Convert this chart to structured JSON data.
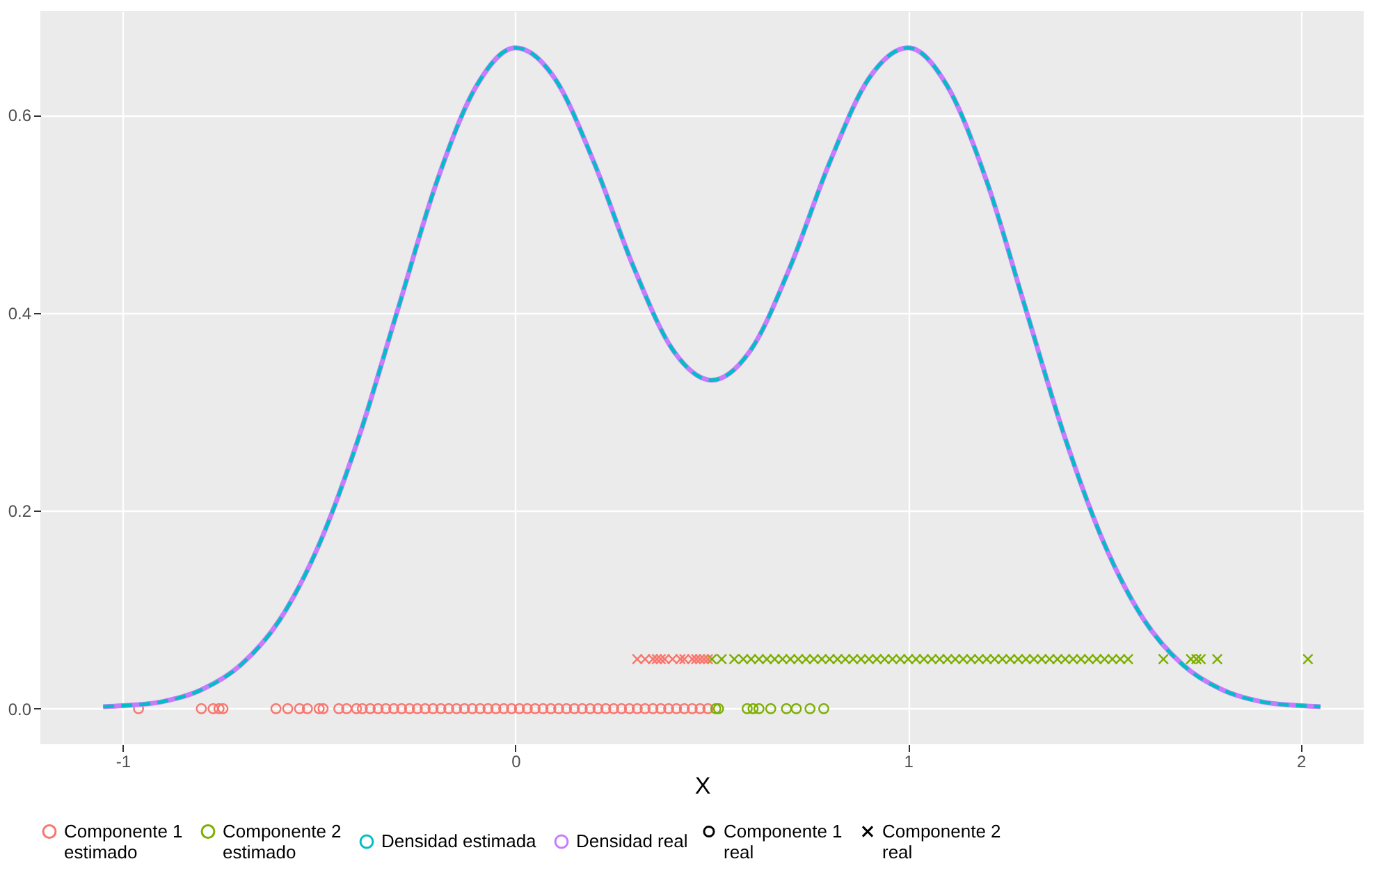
{
  "chart_data": {
    "type": "line",
    "xlabel": "X",
    "xlim": [
      -1.21,
      2.16
    ],
    "ylim": [
      -0.036,
      0.705
    ],
    "xticks": [
      -1,
      0,
      1,
      2
    ],
    "yticks": [
      {
        "value": 0,
        "label": "0.0"
      },
      0.2,
      0.4,
      0.6
    ],
    "grid": true,
    "legend": "bottom",
    "annotations": [
      "Componente 1\nreal",
      "Componente 2\nreal"
    ],
    "series": [
      {
        "type": "scatter",
        "name": "Componente 1\nestimado",
        "color": "#f8766d",
        "marker": "circle",
        "x": [
          -0.96,
          -0.8,
          -0.77,
          -0.755,
          -0.745,
          -0.61,
          -0.58,
          -0.55,
          -0.53,
          -0.5,
          -0.49,
          -0.45,
          -0.43,
          -0.405,
          -0.39,
          -0.37,
          -0.35,
          -0.33,
          -0.31,
          -0.29,
          -0.27,
          -0.25,
          -0.23,
          -0.21,
          -0.19,
          -0.17,
          -0.15,
          -0.13,
          -0.11,
          -0.09,
          -0.07,
          -0.05,
          -0.03,
          -0.01,
          0.01,
          0.03,
          0.05,
          0.07,
          0.09,
          0.11,
          0.13,
          0.15,
          0.17,
          0.19,
          0.21,
          0.23,
          0.25,
          0.27,
          0.29,
          0.31,
          0.33,
          0.35,
          0.37,
          0.39,
          0.41,
          0.43,
          0.45,
          0.47,
          0.49
        ],
        "values": [
          0,
          0,
          0,
          0,
          0,
          0,
          0,
          0,
          0,
          0,
          0,
          0,
          0,
          0,
          0,
          0,
          0,
          0,
          0,
          0,
          0,
          0,
          0,
          0,
          0,
          0,
          0,
          0,
          0,
          0,
          0,
          0,
          0,
          0,
          0,
          0,
          0,
          0,
          0,
          0,
          0,
          0,
          0,
          0,
          0,
          0,
          0,
          0,
          0,
          0,
          0,
          0,
          0,
          0,
          0,
          0,
          0,
          0,
          0
        ]
      },
      {
        "type": "scatter",
        "name": "Componente 2\nestimado",
        "color": "#7cae00",
        "marker": "cross",
        "x": [
          0.5,
          0.525,
          0.557,
          0.58,
          0.6,
          0.62,
          0.64,
          0.66,
          0.68,
          0.7,
          0.72,
          0.74,
          0.76,
          0.78,
          0.8,
          0.82,
          0.84,
          0.86,
          0.88,
          0.9,
          0.92,
          0.94,
          0.96,
          0.98,
          1.0,
          1.02,
          1.04,
          1.06,
          1.08,
          1.1,
          1.12,
          1.14,
          1.16,
          1.18,
          1.2,
          1.22,
          1.24,
          1.26,
          1.28,
          1.3,
          1.32,
          1.34,
          1.36,
          1.38,
          1.4,
          1.42,
          1.44,
          1.46,
          1.48,
          1.5,
          1.52,
          1.54,
          1.56,
          1.65,
          1.72,
          1.734,
          1.745,
          1.787,
          2.018
        ],
        "values": [
          0.05,
          0.05,
          0.05,
          0.05,
          0.05,
          0.05,
          0.05,
          0.05,
          0.05,
          0.05,
          0.05,
          0.05,
          0.05,
          0.05,
          0.05,
          0.05,
          0.05,
          0.05,
          0.05,
          0.05,
          0.05,
          0.05,
          0.05,
          0.05,
          0.05,
          0.05,
          0.05,
          0.05,
          0.05,
          0.05,
          0.05,
          0.05,
          0.05,
          0.05,
          0.05,
          0.05,
          0.05,
          0.05,
          0.05,
          0.05,
          0.05,
          0.05,
          0.05,
          0.05,
          0.05,
          0.05,
          0.05,
          0.05,
          0.05,
          0.05,
          0.05,
          0.05,
          0.05,
          0.05,
          0.05,
          0.05,
          0.05,
          0.05,
          0.05
        ]
      },
      {
        "type": "line",
        "name": "Densidad estimada",
        "color": "#00bfc4",
        "line_style": "dashed",
        "x": [
          -1.05,
          -1.0,
          -0.9,
          -0.8,
          -0.7,
          -0.6,
          -0.5,
          -0.4,
          -0.3,
          -0.2,
          -0.1,
          0,
          0.1,
          0.2,
          0.3,
          0.4,
          0.5,
          0.6,
          0.7,
          0.8,
          0.9,
          1.0,
          1.1,
          1.2,
          1.3,
          1.4,
          1.5,
          1.6,
          1.7,
          1.8,
          1.9,
          2.0,
          2.05
        ],
        "values": [
          0.002,
          0.003,
          0.007,
          0.019,
          0.044,
          0.09,
          0.166,
          0.273,
          0.403,
          0.533,
          0.629,
          0.668,
          0.637,
          0.552,
          0.447,
          0.363,
          0.332,
          0.363,
          0.447,
          0.552,
          0.637,
          0.668,
          0.629,
          0.533,
          0.403,
          0.273,
          0.166,
          0.09,
          0.044,
          0.019,
          0.007,
          0.003,
          0.002
        ]
      },
      {
        "type": "line",
        "name": "Densidad real",
        "color": "#c77cff",
        "line_style": "solid",
        "x": [
          -1.05,
          -1.0,
          -0.9,
          -0.8,
          -0.7,
          -0.6,
          -0.5,
          -0.4,
          -0.3,
          -0.2,
          -0.1,
          0,
          0.1,
          0.2,
          0.3,
          0.4,
          0.5,
          0.6,
          0.7,
          0.8,
          0.9,
          1.0,
          1.1,
          1.2,
          1.3,
          1.4,
          1.5,
          1.6,
          1.7,
          1.8,
          1.9,
          2.0,
          2.05
        ],
        "values": [
          0.002,
          0.003,
          0.007,
          0.019,
          0.044,
          0.09,
          0.166,
          0.273,
          0.403,
          0.533,
          0.629,
          0.668,
          0.637,
          0.552,
          0.447,
          0.363,
          0.332,
          0.363,
          0.447,
          0.552,
          0.637,
          0.668,
          0.629,
          0.533,
          0.403,
          0.273,
          0.166,
          0.09,
          0.044,
          0.019,
          0.007,
          0.003,
          0.002
        ]
      },
      {
        "type": "scatter",
        "color": "#f8766d",
        "marker": "cross",
        "x": [
          0.31,
          0.33,
          0.35,
          0.36,
          0.37,
          0.38,
          0.4,
          0.42,
          0.43,
          0.45,
          0.46,
          0.47,
          0.48,
          0.49
        ],
        "values": [
          0.05,
          0.05,
          0.05,
          0.05,
          0.05,
          0.05,
          0.05,
          0.05,
          0.05,
          0.05,
          0.05,
          0.05,
          0.05,
          0.05
        ]
      },
      {
        "type": "scatter",
        "color": "#7cae00",
        "marker": "circle",
        "x": [
          0.51,
          0.517,
          0.59,
          0.605,
          0.62,
          0.65,
          0.69,
          0.715,
          0.75,
          0.785
        ],
        "values": [
          0,
          0,
          0,
          0,
          0,
          0,
          0,
          0,
          0,
          0
        ]
      }
    ]
  }
}
